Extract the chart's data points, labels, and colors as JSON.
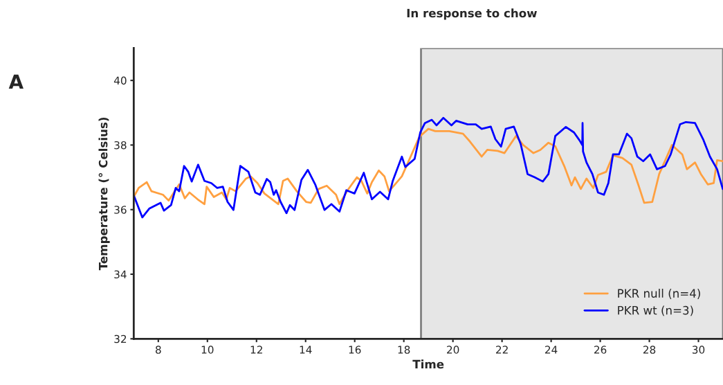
{
  "chart_data": {
    "type": "line",
    "title": "In response to chow",
    "xlabel": "Time",
    "ylabel": "Temperature (° Celsius)",
    "annotations": [
      "A"
    ],
    "xlim": [
      7,
      31
    ],
    "ylim": [
      32,
      41
    ],
    "xticks": [
      8,
      10,
      12,
      14,
      16,
      18,
      20,
      22,
      24,
      26,
      28,
      30
    ],
    "yticks": [
      32,
      34,
      36,
      38,
      40
    ],
    "grid": false,
    "legend": "bottom right",
    "line_style": "solid",
    "marker": "none",
    "bands": [
      {
        "axis": "x",
        "from": 18.7,
        "to": 31,
        "color": "#e6e6e6"
      }
    ],
    "series": [
      {
        "name": "PKR null (n=4)",
        "color": "#ffa040",
        "x": [
          7.01,
          7.2,
          7.53,
          7.72,
          8.19,
          8.42,
          8.85,
          9.08,
          9.27,
          9.6,
          9.88,
          9.97,
          10.26,
          10.59,
          10.77,
          10.91,
          11.15,
          11.57,
          11.76,
          12.04,
          12.32,
          12.89,
          13.08,
          13.27,
          13.64,
          14.02,
          14.21,
          14.53,
          14.86,
          15.24,
          15.38,
          15.71,
          16.09,
          16.27,
          16.51,
          16.7,
          16.98,
          17.21,
          17.4,
          17.64,
          17.92,
          18.3,
          18.63,
          19.0,
          19.28,
          19.85,
          20.41,
          20.69,
          21.17,
          21.4,
          21.82,
          22.1,
          22.57,
          22.86,
          23.28,
          23.56,
          23.89,
          24.17,
          24.55,
          24.83,
          24.97,
          25.21,
          25.44,
          25.72,
          25.91,
          26.24,
          26.52,
          26.9,
          27.27,
          27.56,
          27.79,
          28.12,
          28.4,
          28.69,
          28.92,
          29.34,
          29.53,
          29.86,
          30.1,
          30.38,
          30.62,
          30.76,
          30.99
        ],
        "values": [
          36.41,
          36.67,
          36.85,
          36.57,
          36.46,
          36.28,
          36.78,
          36.35,
          36.53,
          36.32,
          36.17,
          36.71,
          36.39,
          36.53,
          36.32,
          36.67,
          36.57,
          36.96,
          37.03,
          36.82,
          36.5,
          36.17,
          36.89,
          36.96,
          36.57,
          36.24,
          36.21,
          36.64,
          36.74,
          36.46,
          36.17,
          36.6,
          37.0,
          36.89,
          36.5,
          36.85,
          37.21,
          37.03,
          36.57,
          36.78,
          37.03,
          37.68,
          38.25,
          38.5,
          38.43,
          38.43,
          38.35,
          38.11,
          37.64,
          37.85,
          37.82,
          37.75,
          38.28,
          38.0,
          37.75,
          37.85,
          38.07,
          37.96,
          37.32,
          36.75,
          37.0,
          36.64,
          36.96,
          36.67,
          37.07,
          37.17,
          37.68,
          37.6,
          37.39,
          36.75,
          36.21,
          36.24,
          37.1,
          37.6,
          38.0,
          37.71,
          37.25,
          37.46,
          37.1,
          36.78,
          36.82,
          37.53,
          37.5
        ]
      },
      {
        "name": "PKR wt (n=3)",
        "color": "#0000ff",
        "x": [
          7.01,
          7.35,
          7.63,
          8.09,
          8.23,
          8.52,
          8.71,
          8.85,
          9.05,
          9.22,
          9.36,
          9.62,
          9.88,
          10.16,
          10.4,
          10.63,
          10.82,
          11.06,
          11.34,
          11.67,
          11.95,
          12.14,
          12.42,
          12.56,
          12.7,
          12.8,
          12.98,
          13.22,
          13.36,
          13.55,
          13.83,
          14.09,
          14.39,
          14.77,
          15.05,
          15.38,
          15.66,
          15.99,
          16.37,
          16.7,
          17.03,
          17.36,
          17.55,
          17.92,
          18.06,
          18.44,
          18.67,
          18.86,
          19.14,
          19.33,
          19.61,
          19.94,
          20.13,
          20.6,
          20.93,
          21.17,
          21.54,
          21.73,
          21.96,
          22.15,
          22.48,
          22.76,
          23.04,
          23.33,
          23.66,
          23.89,
          24.17,
          24.6,
          24.93,
          25.16,
          25.27,
          25.28,
          25.3,
          25.44,
          25.68,
          25.91,
          26.15,
          26.33,
          26.52,
          26.76,
          27.09,
          27.27,
          27.51,
          27.75,
          28.03,
          28.31,
          28.64,
          28.87,
          29.25,
          29.49,
          29.86,
          30.19,
          30.47,
          30.76,
          30.99
        ],
        "values": [
          36.42,
          35.76,
          36.03,
          36.21,
          35.97,
          36.14,
          36.67,
          36.57,
          37.35,
          37.17,
          36.87,
          37.39,
          36.89,
          36.82,
          36.67,
          36.71,
          36.24,
          35.99,
          37.35,
          37.17,
          36.53,
          36.46,
          36.95,
          36.85,
          36.46,
          36.6,
          36.24,
          35.89,
          36.14,
          35.99,
          36.92,
          37.23,
          36.78,
          35.99,
          36.17,
          35.94,
          36.6,
          36.5,
          37.14,
          36.32,
          36.55,
          36.32,
          36.89,
          37.64,
          37.32,
          37.57,
          38.39,
          38.68,
          38.78,
          38.61,
          38.84,
          38.61,
          38.75,
          38.64,
          38.64,
          38.5,
          38.57,
          38.18,
          37.95,
          38.5,
          38.57,
          38.03,
          37.1,
          37.0,
          36.87,
          37.1,
          38.28,
          38.56,
          38.39,
          38.14,
          38.0,
          38.68,
          37.8,
          37.46,
          37.1,
          36.53,
          36.46,
          36.82,
          37.71,
          37.71,
          38.35,
          38.21,
          37.64,
          37.5,
          37.71,
          37.25,
          37.35,
          37.71,
          38.64,
          38.71,
          38.68,
          38.18,
          37.64,
          37.25,
          36.64
        ]
      }
    ]
  }
}
